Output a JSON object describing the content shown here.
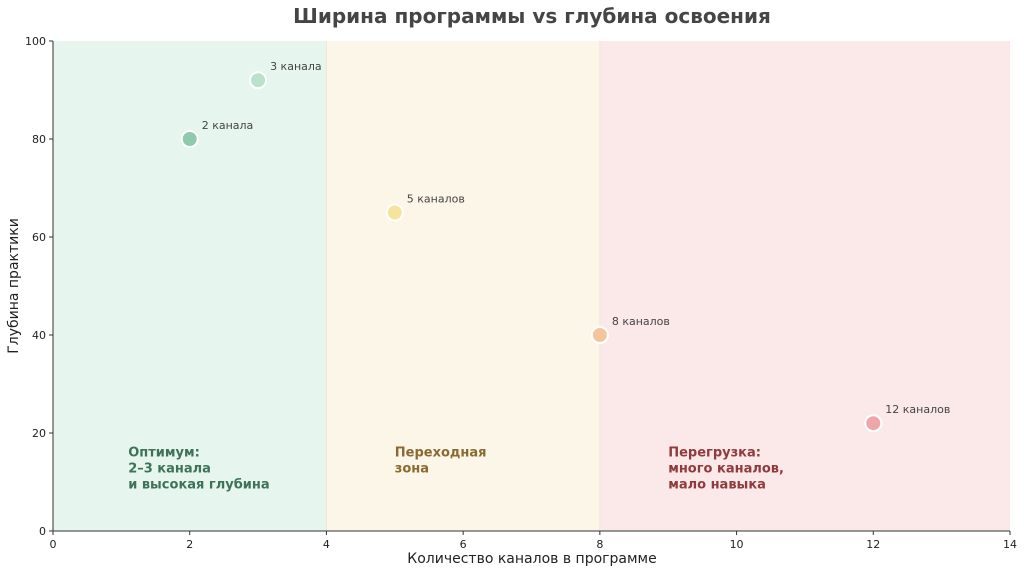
{
  "chart_data": {
    "type": "scatter",
    "title": "Ширина программы vs глубина освоения",
    "xlabel": "Количество каналов в программе",
    "ylabel": "Глубина практики",
    "xlim": [
      0,
      14
    ],
    "ylim": [
      0,
      100
    ],
    "xticks": [
      0,
      2,
      4,
      6,
      8,
      10,
      12,
      14
    ],
    "yticks": [
      0,
      20,
      40,
      60,
      80,
      100
    ],
    "grid": false,
    "points": [
      {
        "x": 2,
        "y": 80,
        "label": "2 канала",
        "color": "#8fcaaf"
      },
      {
        "x": 3,
        "y": 92,
        "label": "3 канала",
        "color": "#b9e2cd"
      },
      {
        "x": 5,
        "y": 65,
        "label": "5 каналов",
        "color": "#f6e49c"
      },
      {
        "x": 8,
        "y": 40,
        "label": "8 каналов",
        "color": "#f4c59c"
      },
      {
        "x": 12,
        "y": 22,
        "label": "12 каналов",
        "color": "#eea7a8"
      }
    ],
    "zones": [
      {
        "x_from": 0,
        "x_to": 4,
        "color": "#e6f5ee",
        "text_color": "#3d7458",
        "text_lines": [
          "Оптимум:",
          "2–3 канала",
          "и высокая глубина"
        ]
      },
      {
        "x_from": 4,
        "x_to": 8,
        "color": "#fcf6e8",
        "text_color": "#8a6a30",
        "text_lines": [
          "Переходная",
          "зона"
        ]
      },
      {
        "x_from": 8,
        "x_to": 14,
        "color": "#fbe9ea",
        "text_color": "#8f3a3c",
        "text_lines": [
          "Перегрузка:",
          "много каналов,",
          "мало навыка"
        ]
      }
    ]
  }
}
